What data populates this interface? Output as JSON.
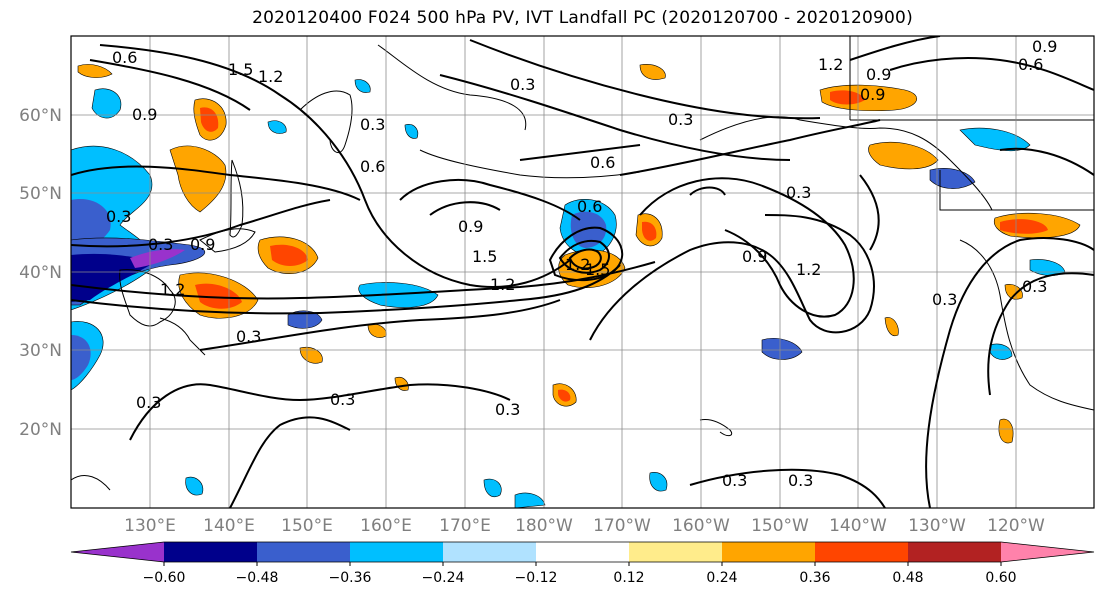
{
  "title": "2020120400 F024 500 hPa PV, IVT Landfall PC (2020120700 - 2020120900)",
  "lat_labels": [
    "60°N",
    "50°N",
    "40°N",
    "30°N",
    "20°N"
  ],
  "lon_labels": [
    "130°E",
    "140°E",
    "150°E",
    "160°E",
    "170°E",
    "180°W",
    "170°W",
    "160°W",
    "150°W",
    "140°W",
    "130°W",
    "120°W"
  ],
  "colorbar": {
    "colors": [
      "#9932cc",
      "#00008b",
      "#3a5fcd",
      "#00bfff",
      "#b0e2ff",
      "#ffffff",
      "#ffec8b",
      "#ffa500",
      "#ff4500",
      "#b22222",
      "#ff82ab"
    ],
    "ticks": [
      "−0.60",
      "−0.48",
      "−0.36",
      "−0.24",
      "−0.12",
      "0.12",
      "0.24",
      "0.36",
      "0.48",
      "0.60"
    ]
  },
  "contour_labels": [
    "0.6",
    "1.5",
    "1.2",
    "0.3",
    "0.9",
    "0.3",
    "0.6",
    "0.3",
    "1.2",
    "0.9",
    "0.6",
    "0.9",
    "0.3",
    "1.2",
    "0.6",
    "0.9",
    "0.9",
    "1.5",
    "1.2",
    "0.6",
    "0.9",
    "1.2",
    "0.3",
    "0.3",
    "1.2",
    "0.3",
    "0.3",
    "0.3",
    "0.3",
    "0.3",
    "0.3",
    "0.3",
    "0.3",
    "0.9",
    "1.5"
  ]
}
